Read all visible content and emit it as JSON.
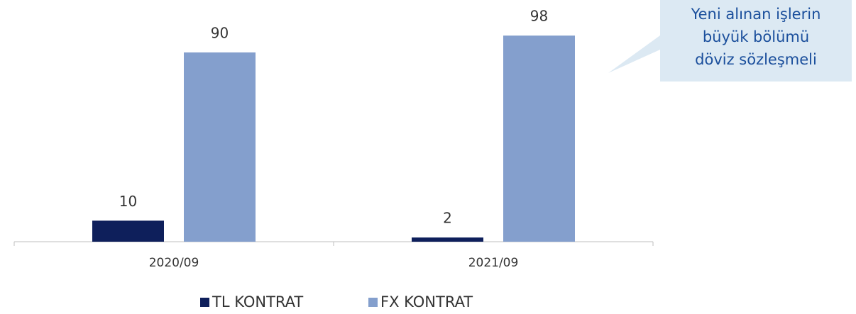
{
  "chart_data": {
    "type": "bar",
    "categories": [
      "2020/09",
      "2021/09"
    ],
    "series": [
      {
        "name": "TL KONTRAT",
        "color": "#0e1f5b",
        "values": [
          10,
          2
        ]
      },
      {
        "name": "FX KONTRAT",
        "color": "#849fcd",
        "values": [
          90,
          98
        ]
      }
    ],
    "ylim": [
      0,
      100
    ],
    "annotation": [
      "Yeni alınan işlerin",
      "büyük bölümü",
      "döviz sözleşmeli"
    ]
  }
}
